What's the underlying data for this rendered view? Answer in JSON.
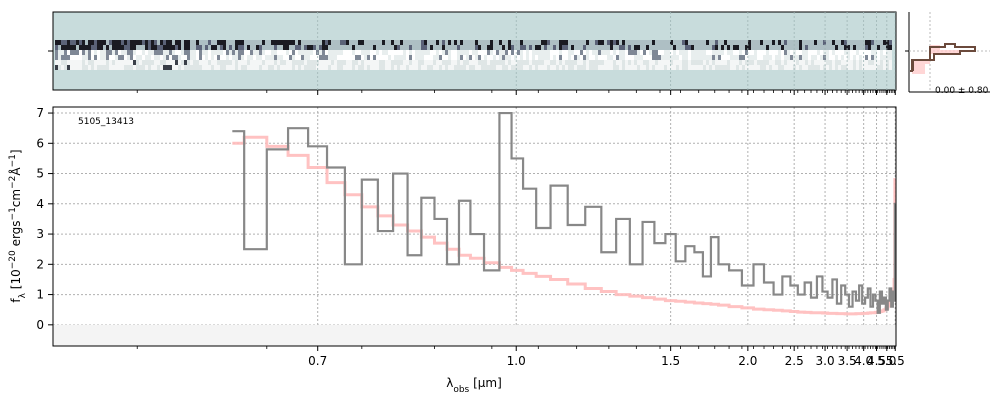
{
  "chart_data": {
    "type": "line",
    "object_id": "5105_13413",
    "xlabel": "λobs [μm]",
    "ylabel": "fλ [10−20 ergs−1cm−2Å−1]",
    "ylim": [
      -0.7,
      7.2
    ],
    "xlim_axis": [
      0.5,
      5.55
    ],
    "x_scale": "reciprocal",
    "xticks": [
      0.7,
      1.0,
      1.5,
      2.0,
      2.5,
      3.0,
      3.5,
      4.0,
      4.5,
      5.0,
      5.5
    ],
    "xtick_labels": [
      "0.7",
      "1.0",
      "1.5",
      "2.0",
      "2.5",
      "3.0",
      "3.5",
      "4.0",
      "4.5",
      "5.0",
      "5.5"
    ],
    "yticks": [
      0,
      1,
      2,
      3,
      4,
      5,
      6,
      7
    ],
    "ytick_labels": [
      "0",
      "1",
      "2",
      "3",
      "4",
      "5",
      "6",
      "7"
    ],
    "grid": true,
    "colors": {
      "data": "#888888",
      "model": "#ffbbbb",
      "model_line": "#ff9999",
      "panel_2d": "#c8dcdc",
      "profile": "#6b4a3c"
    },
    "series": [
      {
        "x": [
          0.62,
          0.64,
          0.66,
          0.68,
          0.7,
          0.72,
          0.74,
          0.76,
          0.78,
          0.8,
          0.82,
          0.84,
          0.86,
          0.88,
          0.9,
          0.92,
          0.95,
          0.98,
          1.0,
          1.03,
          1.06,
          1.1,
          1.15,
          1.2,
          1.25,
          1.3,
          1.35,
          1.4,
          1.45,
          1.5,
          1.55,
          1.6,
          1.65,
          1.7,
          1.75,
          1.8,
          1.9,
          2.0,
          2.1,
          2.2,
          2.3,
          2.4,
          2.5,
          2.6,
          2.7,
          2.8,
          2.9,
          3.0,
          3.1,
          3.2,
          3.3,
          3.4,
          3.5,
          3.6,
          3.7,
          3.8,
          3.9,
          4.0,
          4.1,
          4.2,
          4.3,
          4.4,
          4.5,
          4.6,
          4.7,
          4.8,
          4.9,
          5.0,
          5.1,
          5.2,
          5.3,
          5.4,
          5.45,
          5.5
        ],
        "y": [
          6.4,
          2.5,
          5.8,
          6.5,
          5.9,
          5.2,
          2.0,
          4.8,
          3.1,
          5.0,
          2.3,
          4.2,
          3.5,
          2.0,
          4.1,
          3.0,
          1.8,
          7.0,
          5.5,
          4.5,
          3.2,
          4.6,
          3.3,
          3.9,
          2.4,
          3.5,
          2.0,
          3.4,
          2.7,
          3.0,
          2.1,
          2.6,
          2.4,
          1.6,
          2.9,
          2.0,
          1.8,
          1.3,
          2.0,
          1.4,
          1.0,
          1.6,
          1.3,
          1.0,
          1.4,
          0.9,
          1.6,
          1.1,
          0.9,
          1.5,
          0.7,
          1.3,
          1.0,
          0.6,
          1.1,
          0.8,
          1.3,
          0.7,
          0.9,
          1.2,
          0.6,
          1.0,
          0.8,
          0.4,
          1.1,
          0.7,
          0.9,
          0.5,
          0.8,
          1.2,
          0.6,
          1.1,
          0.8,
          4.0
        ]
      },
      {
        "x": [
          0.62,
          0.64,
          0.66,
          0.68,
          0.7,
          0.72,
          0.74,
          0.76,
          0.78,
          0.8,
          0.82,
          0.84,
          0.86,
          0.88,
          0.9,
          0.92,
          0.95,
          0.98,
          1.0,
          1.03,
          1.06,
          1.1,
          1.15,
          1.2,
          1.25,
          1.3,
          1.35,
          1.4,
          1.45,
          1.5,
          1.55,
          1.6,
          1.65,
          1.7,
          1.75,
          1.8,
          1.9,
          2.0,
          2.1,
          2.2,
          2.3,
          2.4,
          2.5,
          2.6,
          2.7,
          2.8,
          2.9,
          3.0,
          3.1,
          3.2,
          3.3,
          3.4,
          3.5,
          3.6,
          3.7,
          3.8,
          3.9,
          4.0,
          4.1,
          4.2,
          4.3,
          4.4,
          4.5,
          4.6,
          4.7,
          4.8,
          4.9,
          5.0,
          5.1,
          5.2,
          5.3,
          5.4,
          5.45,
          5.5
        ],
        "y": [
          6.0,
          6.2,
          5.9,
          5.6,
          5.2,
          4.7,
          4.3,
          3.9,
          3.6,
          3.3,
          3.1,
          2.9,
          2.7,
          2.5,
          2.3,
          2.2,
          2.05,
          1.9,
          1.8,
          1.7,
          1.6,
          1.5,
          1.35,
          1.2,
          1.1,
          1.0,
          0.95,
          0.9,
          0.85,
          0.8,
          0.78,
          0.75,
          0.72,
          0.7,
          0.68,
          0.65,
          0.6,
          0.56,
          0.52,
          0.5,
          0.48,
          0.46,
          0.44,
          0.42,
          0.41,
          0.4,
          0.4,
          0.39,
          0.38,
          0.38,
          0.37,
          0.37,
          0.36,
          0.36,
          0.36,
          0.37,
          0.37,
          0.38,
          0.38,
          0.39,
          0.4,
          0.4,
          0.41,
          0.42,
          0.44,
          0.46,
          0.5,
          0.55,
          0.62,
          0.72,
          0.85,
          1.1,
          1.5,
          4.8
        ]
      }
    ],
    "profile_panel": {
      "annotation": "0.00 ± 0.80"
    }
  }
}
